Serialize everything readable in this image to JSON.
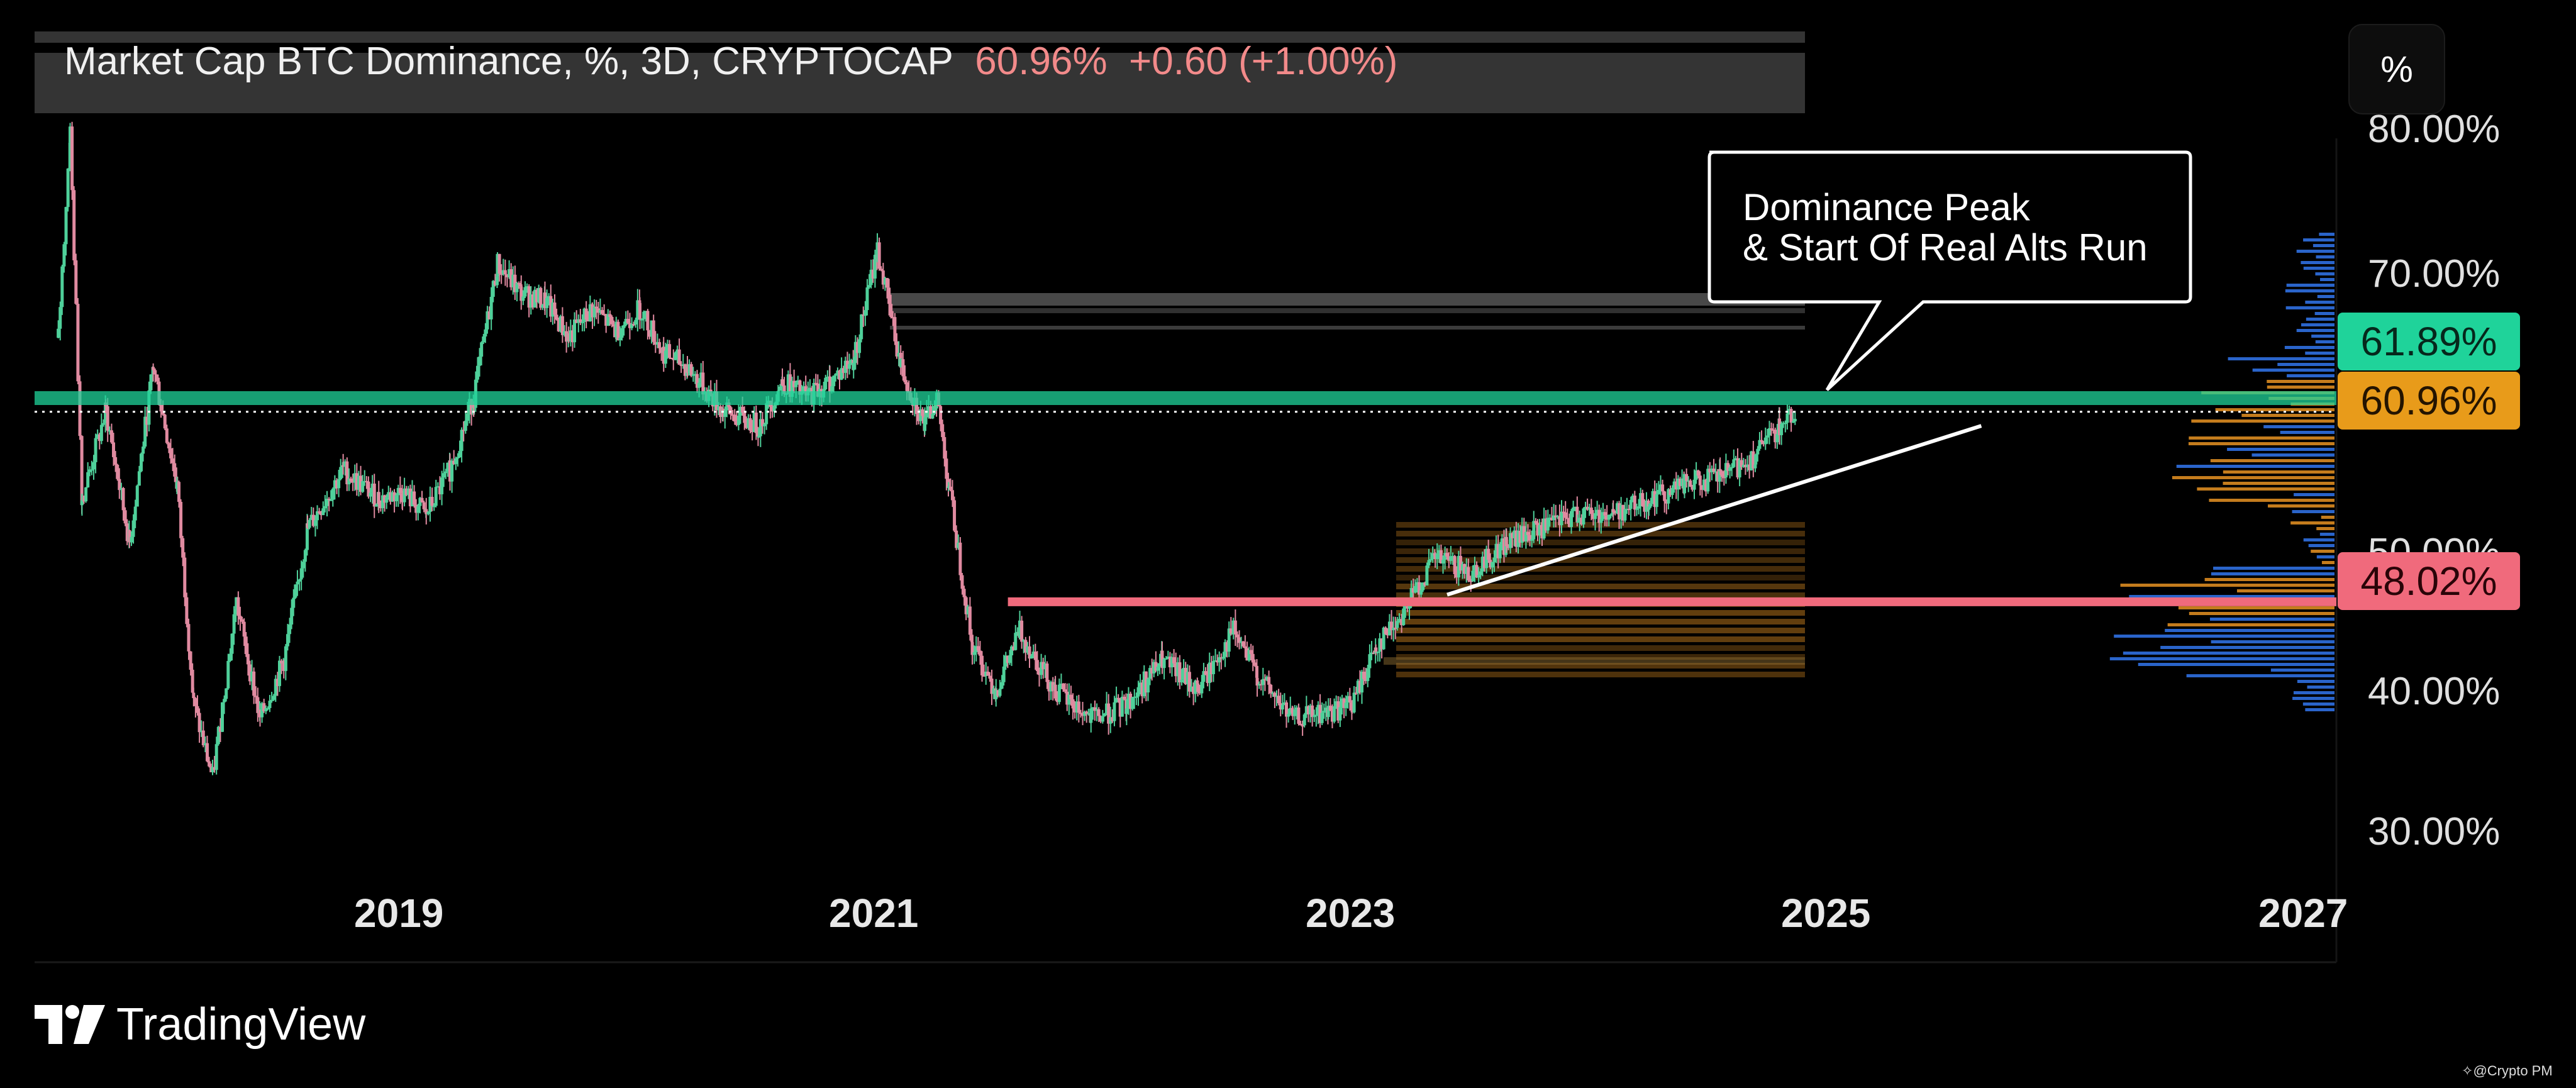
{
  "header": {
    "title": "Market Cap BTC Dominance, %, 3D, CRYPTOCAP",
    "price": "60.96%",
    "change": "+0.60 (+1.00%)"
  },
  "scale_button": {
    "label": "%"
  },
  "annotation": {
    "line1": "Dominance Peak",
    "line2": "& Start Of Real Alts Run"
  },
  "badges": {
    "resistance": "61.89%",
    "current": "60.96%",
    "support": "48.02%"
  },
  "logo": {
    "text": "TradingView"
  },
  "credit": {
    "text": "@Crypto PM"
  },
  "colors": {
    "up": "#4fd09a",
    "down": "#e08aa0",
    "resistance": "#1fd39a",
    "current": "#e89b1a",
    "support": "#f06a7c",
    "profile_blue": "#2f6fe0",
    "profile_orange": "#d98a20"
  },
  "chart_data": {
    "type": "line",
    "title": "Market Cap BTC Dominance, %, 3D, CRYPTOCAP",
    "xlabel": "",
    "ylabel": "",
    "ylim": [
      25,
      82
    ],
    "xlim": [
      2017.5,
      2027.0
    ],
    "x_ticks": [
      "2019",
      "2021",
      "2023",
      "2025",
      "2027"
    ],
    "y_ticks": [
      "80.00%",
      "70.00%",
      "50.00%",
      "40.00%",
      "30.00%"
    ],
    "series": [
      {
        "x": [
          2017.55,
          2017.6,
          2017.65,
          2017.75,
          2017.85,
          2017.95,
          2018.05,
          2018.12,
          2018.2,
          2018.3,
          2018.4,
          2018.5,
          2018.6,
          2018.75,
          2018.9,
          2019.0,
          2019.1,
          2019.2,
          2019.3,
          2019.4,
          2019.5,
          2019.6,
          2019.7,
          2019.8,
          2019.9,
          2020.0,
          2020.1,
          2020.2,
          2020.35,
          2020.5,
          2020.6,
          2020.7,
          2020.8,
          2020.9,
          2021.0,
          2021.1,
          2021.2,
          2021.25,
          2021.3,
          2021.4,
          2021.5,
          2021.6,
          2021.75,
          2021.9,
          2022.05,
          2022.2,
          2022.35,
          2022.5,
          2022.6,
          2022.75,
          2022.9,
          2023.0,
          2023.1,
          2023.2,
          2023.35,
          2023.5,
          2023.65,
          2023.8,
          2023.95,
          2024.1,
          2024.25,
          2024.4,
          2024.55,
          2024.7,
          2024.8,
          2024.87
        ],
        "values": [
          66.0,
          80.0,
          55.0,
          61.0,
          52.0,
          64.0,
          56.0,
          41.0,
          36.0,
          48.0,
          40.0,
          44.0,
          53.0,
          57.0,
          55.0,
          55.5,
          54.0,
          57.0,
          62.0,
          71.0,
          69.0,
          68.5,
          66.0,
          68.0,
          66.5,
          68.0,
          65.0,
          64.0,
          61.0,
          60.0,
          63.0,
          62.0,
          63.0,
          64.5,
          72.0,
          64.0,
          60.0,
          62.0,
          56.0,
          45.0,
          42.0,
          46.0,
          42.0,
          40.0,
          41.0,
          44.0,
          42.0,
          46.0,
          43.0,
          40.0,
          40.5,
          41.0,
          45.0,
          47.0,
          51.0,
          50.0,
          52.0,
          53.0,
          54.0,
          54.0,
          55.0,
          56.0,
          56.5,
          58.0,
          60.0,
          61.0
        ]
      }
    ],
    "horizontal_lines": [
      {
        "value": 61.89,
        "label": "61.89%",
        "style": "solid"
      },
      {
        "value": 60.96,
        "label": "60.96%",
        "style": "dotted"
      },
      {
        "value": 48.02,
        "label": "48.02%",
        "style": "solid"
      }
    ],
    "trendline": {
      "x": [
        2023.4,
        2025.65
      ],
      "values": [
        48.5,
        60.0
      ]
    },
    "grid": false,
    "legend": "none"
  }
}
